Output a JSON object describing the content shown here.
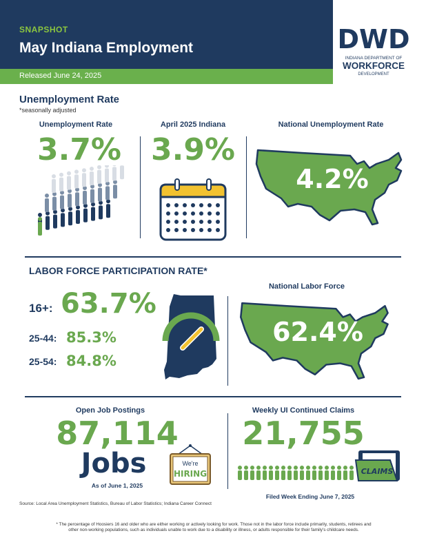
{
  "header": {
    "kicker": "SNAPSHOT",
    "title": "May Indiana Employment",
    "released": "Released June 24, 2025"
  },
  "logo": {
    "letters": "DWD",
    "line1": "INDIANA DEPARTMENT OF",
    "line2": "WORKFORCE",
    "line3": "DEVELOPMENT"
  },
  "unemployment": {
    "section_title": "Unemployment Rate",
    "section_note": "*seasonally adjusted",
    "indiana_label": "Unemployment Rate",
    "indiana_value": "3.7%",
    "april_label": "April 2025 Indiana",
    "april_value": "3.9%",
    "national_label": "National Unemployment Rate",
    "national_value": "4.2%"
  },
  "lfpr": {
    "section_title": "LABOR FORCE PARTICIPATION RATE*",
    "row1_label": "16+:",
    "row1_value": "63.7%",
    "row2_label": "25-44:",
    "row2_value": "85.3%",
    "row3_label": "25-54:",
    "row3_value": "84.8%",
    "national_label": "National Labor Force",
    "national_value": "62.4%"
  },
  "postings": {
    "label": "Open Job Postings",
    "value": "87,114",
    "unit": "Jobs",
    "as_of": "As of June 1, 2025",
    "sign_line1": "We're",
    "sign_line2": "HIRING"
  },
  "claims": {
    "label": "Weekly UI Continued Claims",
    "value": "21,755",
    "folder_text": "CLAIMS",
    "filed": "Filed Week Ending June 7, 2025"
  },
  "source": "Source: Local Area Unemployment Statistics, Bureau of Labor Statistics; Indiana Career Connect",
  "footnote_line1": "* The percentage of Hoosiers 16 and older who are either working or actively looking for work. Those not in the labor force include primarily, students, retirees and",
  "footnote_line2": "other non-working populations, such as individuals unable to work due to a disability or illness, or adults responsible for their family's childcare needs.",
  "colors": {
    "navy": "#1f3a5f",
    "green": "#6ab04c",
    "gold": "#f2c230"
  }
}
